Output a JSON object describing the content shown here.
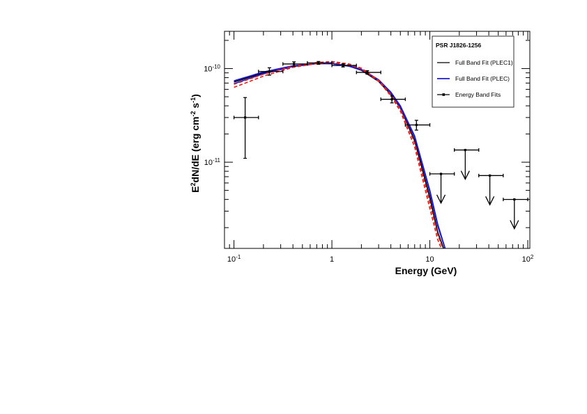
{
  "chart_data": {
    "type": "scatter",
    "title": "",
    "xlabel": "Energy (GeV)",
    "ylabel_parts": [
      "E",
      "2",
      "dN/dE (erg cm",
      "-2",
      " s",
      "-1",
      ")"
    ],
    "x_scale": "log",
    "y_scale": "log",
    "xlim": [
      0.08,
      105
    ],
    "ylim": [
      1.2e-12,
      2.5e-10
    ],
    "x_ticks": [
      {
        "value": 0.1,
        "base": "10",
        "exp": "-1"
      },
      {
        "value": 1,
        "base": "1",
        "exp": ""
      },
      {
        "value": 10,
        "base": "10",
        "exp": ""
      },
      {
        "value": 100,
        "base": "10",
        "exp": "2"
      }
    ],
    "y_ticks": [
      {
        "value": 1e-11,
        "base": "10",
        "exp": "-11"
      },
      {
        "value": 1e-10,
        "base": "10",
        "exp": "-10"
      }
    ],
    "legend": {
      "title": "PSR J1826-1256",
      "position": "top-right",
      "entries": [
        "Full Band Fit (PLEC1)",
        "Full Band Fit (PLEC)",
        "Energy Band Fits"
      ]
    },
    "points": [
      {
        "x": 0.13,
        "xlo": 0.1,
        "xhi": 0.178,
        "y": 3e-11,
        "ylo": 1.1e-11,
        "yhi": 4.9e-11,
        "upper_limit": false
      },
      {
        "x": 0.23,
        "xlo": 0.178,
        "xhi": 0.316,
        "y": 9.3e-11,
        "ylo": 8.5e-11,
        "yhi": 1.02e-10,
        "upper_limit": false
      },
      {
        "x": 0.41,
        "xlo": 0.316,
        "xhi": 0.562,
        "y": 1.12e-10,
        "ylo": 1.06e-10,
        "yhi": 1.18e-10,
        "upper_limit": false
      },
      {
        "x": 0.73,
        "xlo": 0.562,
        "xhi": 1.0,
        "y": 1.15e-10,
        "ylo": 1.11e-10,
        "yhi": 1.19e-10,
        "upper_limit": false
      },
      {
        "x": 1.3,
        "xlo": 1.0,
        "xhi": 1.78,
        "y": 1.08e-10,
        "ylo": 1.04e-10,
        "yhi": 1.12e-10,
        "upper_limit": false
      },
      {
        "x": 2.3,
        "xlo": 1.78,
        "xhi": 3.16,
        "y": 9.1e-11,
        "ylo": 8.7e-11,
        "yhi": 9.5e-11,
        "upper_limit": false
      },
      {
        "x": 4.1,
        "xlo": 3.16,
        "xhi": 5.62,
        "y": 4.7e-11,
        "ylo": 4.3e-11,
        "yhi": 5.1e-11,
        "upper_limit": false
      },
      {
        "x": 7.3,
        "xlo": 5.62,
        "xhi": 10.0,
        "y": 2.5e-11,
        "ylo": 2.2e-11,
        "yhi": 2.8e-11,
        "upper_limit": false
      },
      {
        "x": 13.0,
        "xlo": 10.0,
        "xhi": 17.8,
        "y": 7.5e-12,
        "upper_limit": true
      },
      {
        "x": 23.0,
        "xlo": 17.8,
        "xhi": 31.6,
        "y": 1.35e-11,
        "upper_limit": true
      },
      {
        "x": 41.0,
        "xlo": 31.6,
        "xhi": 56.2,
        "y": 7.2e-12,
        "upper_limit": true
      },
      {
        "x": 73.0,
        "xlo": 56.2,
        "xhi": 100.0,
        "y": 4e-12,
        "upper_limit": true
      }
    ],
    "curves": [
      {
        "name": "Full Band Fit (PLEC1)",
        "color": "#000000",
        "dashed": false,
        "x": [
          0.1,
          0.2,
          0.4,
          0.7,
          1.0,
          1.5,
          2.0,
          3.0,
          4.0,
          5.0,
          7.0,
          10.0,
          12.0,
          14.0
        ],
        "y": [
          7.2e-11,
          9e-11,
          1.06e-10,
          1.13e-10,
          1.13e-10,
          1.06e-10,
          9.6e-11,
          7.3e-11,
          5.3e-11,
          3.8e-11,
          1.7e-11,
          4.2e-12,
          1.8e-12,
          1.15e-12
        ]
      },
      {
        "name": "Full Band Fit (PLEC)",
        "color": "#1a1ad6",
        "dashed": false,
        "x": [
          0.1,
          0.2,
          0.4,
          0.7,
          1.0,
          1.5,
          2.0,
          3.0,
          4.0,
          5.0,
          7.0,
          10.0,
          12.0,
          14.5
        ],
        "y": [
          6.9e-11,
          8.8e-11,
          1.05e-10,
          1.13e-10,
          1.13e-10,
          1.07e-10,
          9.8e-11,
          7.6e-11,
          5.6e-11,
          4e-11,
          1.9e-11,
          5e-12,
          2.2e-12,
          1.15e-12
        ]
      },
      {
        "name": "",
        "color": "#1a1ad6",
        "dashed": false,
        "x": [
          0.1,
          0.2,
          0.4,
          0.7,
          1.0,
          1.5,
          2.0,
          3.0,
          4.0,
          5.0,
          7.0,
          10.0,
          12.0,
          14.5
        ],
        "y": [
          7.4e-11,
          9.2e-11,
          1.07e-10,
          1.135e-10,
          1.13e-10,
          1.06e-10,
          9.7e-11,
          7.5e-11,
          5.5e-11,
          3.9e-11,
          1.85e-11,
          4.8e-12,
          2.1e-12,
          1.15e-12
        ]
      },
      {
        "name": "",
        "color": "#e0201a",
        "dashed": true,
        "x": [
          0.1,
          0.2,
          0.4,
          0.7,
          1.0,
          1.5,
          2.0,
          3.0,
          4.0,
          5.0,
          7.0,
          10.0,
          12.0,
          13.3
        ],
        "y": [
          6.3e-11,
          8.3e-11,
          1.03e-10,
          1.13e-10,
          1.16e-10,
          1.1e-10,
          9.9e-11,
          7.3e-11,
          5.1e-11,
          3.5e-11,
          1.45e-11,
          3.2e-12,
          1.5e-12,
          1.15e-12
        ]
      },
      {
        "name": "",
        "color": "#e0201a",
        "dashed": true,
        "x": [
          0.1,
          0.2,
          0.4,
          0.7,
          1.0,
          1.5,
          2.0,
          3.0,
          4.0,
          5.0,
          7.0,
          10.0,
          12.0,
          13.8
        ],
        "y": [
          6.8e-11,
          8.7e-11,
          1.06e-10,
          1.16e-10,
          1.19e-10,
          1.12e-10,
          1.01e-10,
          7.5e-11,
          5.3e-11,
          3.7e-11,
          1.6e-11,
          3.7e-12,
          1.7e-12,
          1.15e-12
        ]
      }
    ]
  }
}
